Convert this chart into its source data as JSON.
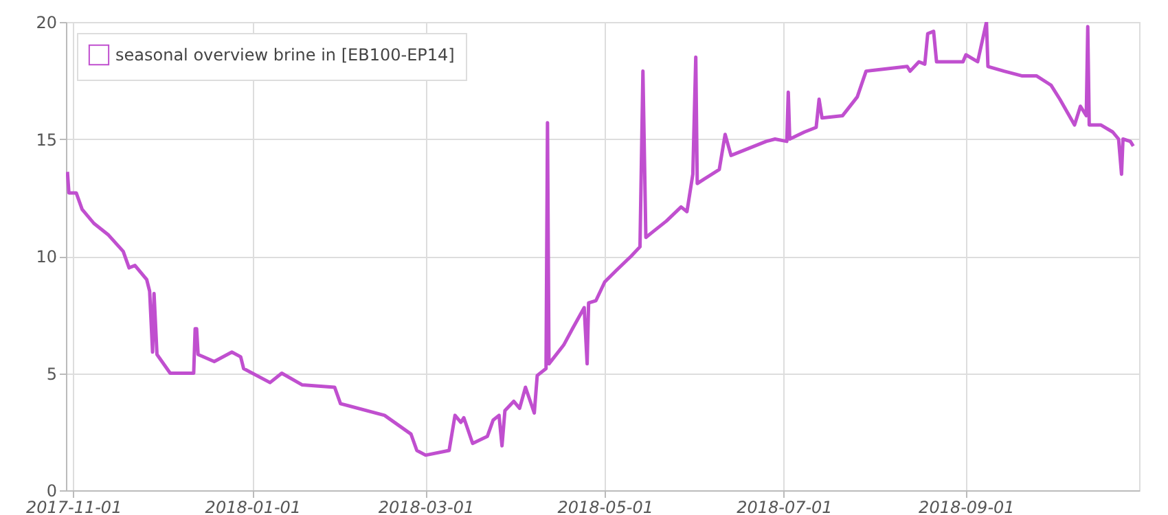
{
  "chart_data": {
    "type": "line",
    "xlim": [
      "2017-10-29T12:00",
      "2018-10-30"
    ],
    "ylim": [
      0,
      20
    ],
    "yticks": [
      0,
      5,
      10,
      15,
      20
    ],
    "xticks": [
      "2017-11-01",
      "2018-01-01",
      "2018-03-01",
      "2018-05-01",
      "2018-07-01",
      "2018-09-01"
    ],
    "grid": true,
    "legend": "top left",
    "marker": "none",
    "line_style": "solid",
    "x": [
      "2017-10-30T00:00",
      "2017-10-30T12:00",
      "2017-11-02",
      "2017-11-04",
      "2017-11-08",
      "2017-11-13",
      "2017-11-18",
      "2017-11-20",
      "2017-11-22",
      "2017-11-26",
      "2017-11-27",
      "2017-11-28T00:00",
      "2017-11-28T12:00",
      "2017-11-29T12:00",
      "2017-12-04",
      "2017-12-12T00:00",
      "2017-12-12T12:00",
      "2017-12-13T00:00",
      "2017-12-13T12:00",
      "2017-12-19",
      "2017-12-25",
      "2017-12-28",
      "2017-12-29",
      "2018-01-07",
      "2018-01-11",
      "2018-01-18",
      "2018-01-29",
      "2018-01-31",
      "2018-02-15",
      "2018-02-24",
      "2018-02-26",
      "2018-03-01",
      "2018-03-09",
      "2018-03-11",
      "2018-03-13",
      "2018-03-14",
      "2018-03-17",
      "2018-03-22",
      "2018-03-24",
      "2018-03-26",
      "2018-03-27",
      "2018-03-28",
      "2018-03-31",
      "2018-04-02",
      "2018-04-04",
      "2018-04-07",
      "2018-04-08",
      "2018-04-11T00:00",
      "2018-04-11T12:00",
      "2018-04-12",
      "2018-04-17",
      "2018-04-20",
      "2018-04-24",
      "2018-04-25T00:00",
      "2018-04-25T12:00",
      "2018-04-28",
      "2018-05-01",
      "2018-05-05",
      "2018-05-10",
      "2018-05-13",
      "2018-05-14",
      "2018-05-15",
      "2018-05-17",
      "2018-05-22",
      "2018-05-27",
      "2018-05-29",
      "2018-05-31",
      "2018-06-01T00:00",
      "2018-06-01T12:00",
      "2018-06-04",
      "2018-06-09",
      "2018-06-11",
      "2018-06-13",
      "2018-06-19",
      "2018-06-25",
      "2018-06-28",
      "2018-07-02T00:00",
      "2018-07-02T12:00",
      "2018-07-03",
      "2018-07-08",
      "2018-07-12",
      "2018-07-13",
      "2018-07-14",
      "2018-07-21",
      "2018-07-26",
      "2018-07-29",
      "2018-08-12",
      "2018-08-13",
      "2018-08-16",
      "2018-08-18",
      "2018-08-19",
      "2018-08-21",
      "2018-08-22",
      "2018-08-31",
      "2018-09-01",
      "2018-09-05",
      "2018-09-08T00:00",
      "2018-09-08T12:00",
      "2018-09-14",
      "2018-09-20",
      "2018-09-25",
      "2018-09-30",
      "2018-10-03",
      "2018-10-08",
      "2018-10-10",
      "2018-10-12T00:00",
      "2018-10-12T12:00",
      "2018-10-13",
      "2018-10-17",
      "2018-10-21",
      "2018-10-23",
      "2018-10-24T00:00",
      "2018-10-24T12:00",
      "2018-10-27",
      "2018-10-28"
    ],
    "series": [
      {
        "name": "seasonal overview brine in [EB100-EP14]",
        "color": "#c04fcf",
        "values": [
          13.6,
          12.7,
          12.7,
          12.0,
          11.4,
          10.9,
          10.2,
          9.5,
          9.6,
          9.0,
          8.5,
          5.9,
          8.4,
          5.8,
          5.0,
          5.0,
          6.9,
          6.9,
          5.8,
          5.5,
          5.9,
          5.7,
          5.2,
          4.6,
          5.0,
          4.5,
          4.4,
          3.7,
          3.2,
          2.4,
          1.7,
          1.5,
          1.7,
          3.2,
          2.9,
          3.1,
          2.0,
          2.3,
          3.0,
          3.2,
          1.9,
          3.4,
          3.8,
          3.5,
          4.4,
          3.3,
          4.9,
          5.2,
          15.7,
          5.4,
          6.2,
          6.9,
          7.8,
          5.4,
          8.0,
          8.1,
          8.9,
          9.4,
          10.0,
          10.4,
          17.9,
          10.8,
          11.0,
          11.5,
          12.1,
          11.9,
          13.5,
          18.5,
          13.1,
          13.3,
          13.7,
          15.2,
          14.3,
          14.6,
          14.9,
          15.0,
          14.9,
          17.0,
          15.0,
          15.3,
          15.5,
          16.7,
          15.9,
          16.0,
          16.8,
          17.9,
          18.1,
          17.9,
          18.3,
          18.2,
          19.5,
          19.6,
          18.3,
          18.3,
          18.6,
          18.3,
          20.0,
          18.1,
          17.9,
          17.7,
          17.7,
          17.3,
          16.7,
          15.6,
          16.4,
          16.0,
          19.8,
          15.6,
          15.6,
          15.3,
          15.0,
          13.5,
          15.0,
          14.9,
          14.7
        ]
      }
    ]
  }
}
